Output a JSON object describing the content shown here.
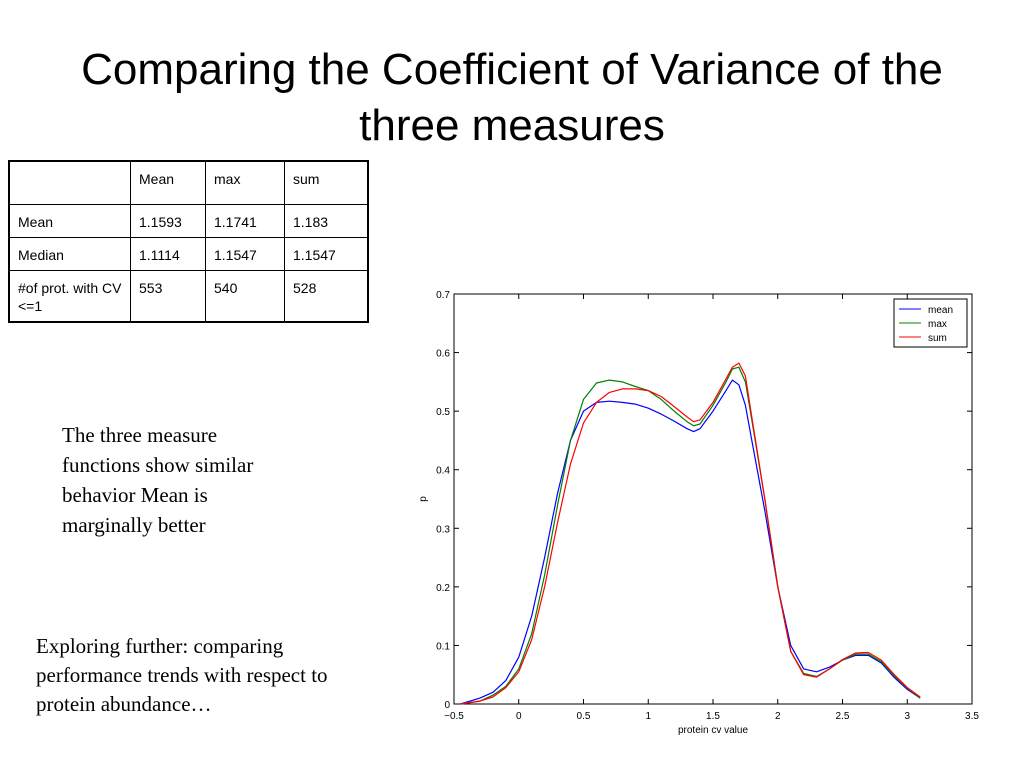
{
  "slide": {
    "title": "Comparing the Coefficient of Variance of the three measures"
  },
  "table": {
    "headers": [
      "",
      "Mean",
      "max",
      "sum"
    ],
    "rows": [
      {
        "label": "Mean",
        "values": [
          "1.1593",
          "1.1741",
          "1.183"
        ]
      },
      {
        "label": "Median",
        "values": [
          "1.1114",
          "1.1547",
          "1.1547"
        ]
      },
      {
        "label": "#of prot. with CV <=1",
        "values": [
          "553",
          "540",
          "528"
        ]
      }
    ]
  },
  "notes": {
    "observation": "The three measure functions show similar behavior Mean is marginally better",
    "further": "Exploring further: comparing performance trends with respect to protein abundance…"
  },
  "chart_data": {
    "type": "line",
    "title": "",
    "xlabel": "protein cv value",
    "ylabel": "p",
    "xlim": [
      -0.5,
      3.5
    ],
    "ylim": [
      0,
      0.7
    ],
    "xticks": [
      -0.5,
      0,
      0.5,
      1,
      1.5,
      2,
      2.5,
      3,
      3.5
    ],
    "yticks": [
      0,
      0.1,
      0.2,
      0.3,
      0.4,
      0.5,
      0.6,
      0.7
    ],
    "xtick_labels": [
      "−0.5",
      "0",
      "0.5",
      "1",
      "1.5",
      "2",
      "2.5",
      "3",
      "3.5"
    ],
    "ytick_labels": [
      "0",
      "0.1",
      "0.2",
      "0.3",
      "0.4",
      "0.5",
      "0.6",
      "0.7"
    ],
    "grid": false,
    "legend_position": "top-right",
    "series": [
      {
        "name": "mean",
        "color": "#0000ff",
        "x": [
          -0.45,
          -0.3,
          -0.2,
          -0.1,
          0,
          0.1,
          0.2,
          0.3,
          0.4,
          0.5,
          0.6,
          0.7,
          0.8,
          0.9,
          1.0,
          1.1,
          1.2,
          1.3,
          1.35,
          1.4,
          1.5,
          1.6,
          1.65,
          1.7,
          1.75,
          1.8,
          1.9,
          2.0,
          2.1,
          2.2,
          2.3,
          2.4,
          2.5,
          2.6,
          2.7,
          2.8,
          2.9,
          3.0,
          3.1
        ],
        "y": [
          0.0,
          0.01,
          0.02,
          0.04,
          0.08,
          0.15,
          0.25,
          0.36,
          0.45,
          0.5,
          0.515,
          0.517,
          0.515,
          0.512,
          0.505,
          0.495,
          0.483,
          0.47,
          0.465,
          0.47,
          0.5,
          0.535,
          0.553,
          0.545,
          0.51,
          0.45,
          0.33,
          0.2,
          0.1,
          0.06,
          0.055,
          0.063,
          0.075,
          0.083,
          0.083,
          0.07,
          0.045,
          0.025,
          0.01
        ]
      },
      {
        "name": "max",
        "color": "#008000",
        "x": [
          -0.45,
          -0.3,
          -0.2,
          -0.1,
          0,
          0.1,
          0.2,
          0.3,
          0.4,
          0.5,
          0.6,
          0.7,
          0.8,
          0.9,
          1.0,
          1.1,
          1.2,
          1.3,
          1.35,
          1.4,
          1.5,
          1.6,
          1.65,
          1.7,
          1.75,
          1.8,
          1.9,
          2.0,
          2.1,
          2.2,
          2.3,
          2.4,
          2.5,
          2.6,
          2.7,
          2.8,
          2.9,
          3.0,
          3.1
        ],
        "y": [
          0.0,
          0.005,
          0.015,
          0.03,
          0.06,
          0.12,
          0.22,
          0.34,
          0.45,
          0.52,
          0.548,
          0.553,
          0.55,
          0.542,
          0.535,
          0.52,
          0.5,
          0.482,
          0.475,
          0.478,
          0.51,
          0.55,
          0.572,
          0.575,
          0.55,
          0.485,
          0.35,
          0.2,
          0.09,
          0.052,
          0.047,
          0.06,
          0.075,
          0.085,
          0.085,
          0.072,
          0.048,
          0.027,
          0.01
        ]
      },
      {
        "name": "sum",
        "color": "#ff0000",
        "x": [
          -0.45,
          -0.3,
          -0.2,
          -0.1,
          0,
          0.1,
          0.2,
          0.3,
          0.4,
          0.5,
          0.6,
          0.7,
          0.8,
          0.9,
          1.0,
          1.1,
          1.2,
          1.3,
          1.35,
          1.4,
          1.5,
          1.6,
          1.65,
          1.7,
          1.75,
          1.8,
          1.9,
          2.0,
          2.1,
          2.2,
          2.3,
          2.4,
          2.5,
          2.6,
          2.7,
          2.8,
          2.9,
          3.0,
          3.1
        ],
        "y": [
          0.0,
          0.005,
          0.012,
          0.028,
          0.055,
          0.11,
          0.2,
          0.31,
          0.41,
          0.48,
          0.515,
          0.532,
          0.538,
          0.538,
          0.535,
          0.525,
          0.508,
          0.49,
          0.482,
          0.485,
          0.515,
          0.555,
          0.575,
          0.582,
          0.56,
          0.49,
          0.35,
          0.2,
          0.09,
          0.05,
          0.046,
          0.06,
          0.076,
          0.087,
          0.088,
          0.075,
          0.05,
          0.028,
          0.012
        ]
      }
    ]
  }
}
